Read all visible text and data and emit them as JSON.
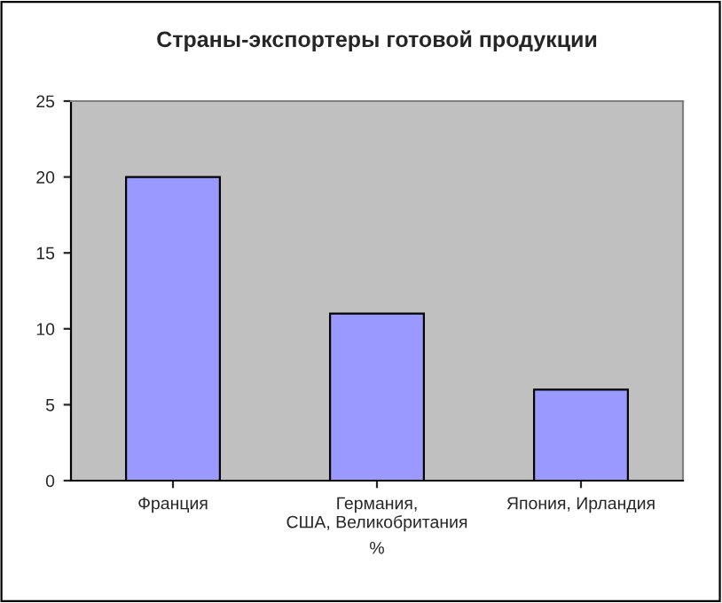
{
  "chart_data": {
    "type": "bar",
    "title": "Страны-экспортеры готовой продукции",
    "categories": [
      "Франция",
      "Германия,\nСША, Великобритания",
      "Япония, Ирландия"
    ],
    "values": [
      20,
      11,
      6
    ],
    "color": "#9999ff",
    "xlabel": "%",
    "ylim": [
      0,
      25
    ],
    "yticks": [
      0,
      5,
      10,
      15,
      20,
      25
    ],
    "grid": false,
    "legend": false
  }
}
